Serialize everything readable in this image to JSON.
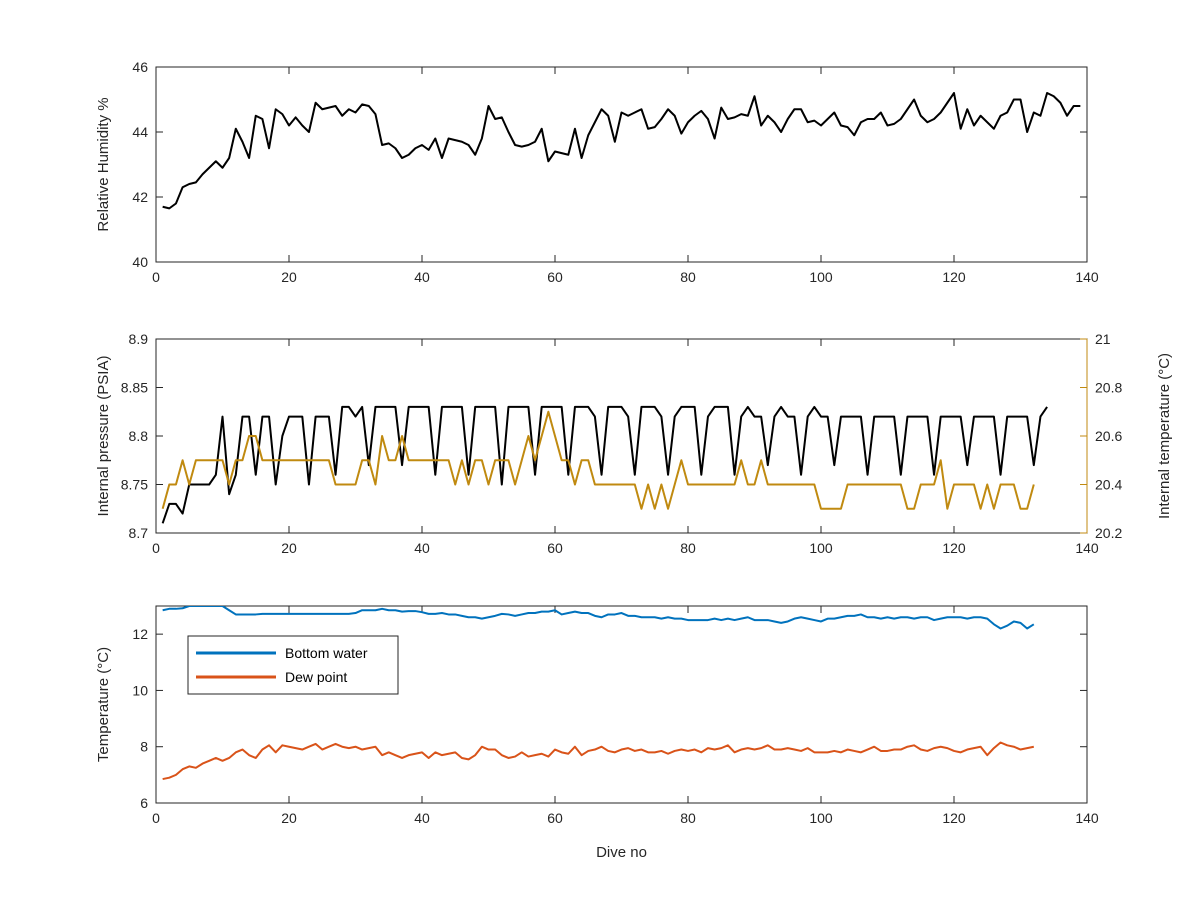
{
  "chart_data": [
    {
      "type": "line",
      "xlim": [
        0,
        140
      ],
      "x_ticks": [
        "0",
        "20",
        "40",
        "60",
        "80",
        "100",
        "120",
        "140"
      ],
      "ylim": [
        40,
        46
      ],
      "y_ticks": [
        "40",
        "42",
        "44",
        "46"
      ],
      "xlabel": "",
      "ylabel": "Relative Humidity %",
      "grid": false,
      "series": [
        {
          "color": "#000000",
          "x_start": 1,
          "x_step": 1,
          "values": [
            41.7,
            41.65,
            41.8,
            42.3,
            42.4,
            42.45,
            42.7,
            42.9,
            43.1,
            42.9,
            43.2,
            44.1,
            43.7,
            43.2,
            44.5,
            44.4,
            43.5,
            44.7,
            44.55,
            44.2,
            44.45,
            44.2,
            44.0,
            44.9,
            44.7,
            44.75,
            44.8,
            44.5,
            44.7,
            44.6,
            44.85,
            44.8,
            44.55,
            43.6,
            43.65,
            43.5,
            43.2,
            43.3,
            43.5,
            43.6,
            43.45,
            43.8,
            43.2,
            43.8,
            43.75,
            43.7,
            43.6,
            43.3,
            43.8,
            44.8,
            44.4,
            44.45,
            44.0,
            43.6,
            43.55,
            43.6,
            43.7,
            44.1,
            43.1,
            43.4,
            43.35,
            43.3,
            44.1,
            43.2,
            43.9,
            44.3,
            44.7,
            44.5,
            43.7,
            44.6,
            44.5,
            44.6,
            44.7,
            44.1,
            44.15,
            44.4,
            44.7,
            44.5,
            43.95,
            44.3,
            44.5,
            44.65,
            44.4,
            43.8,
            44.75,
            44.4,
            44.45,
            44.55,
            44.5,
            45.1,
            44.2,
            44.5,
            44.3,
            44.0,
            44.4,
            44.7,
            44.7,
            44.3,
            44.35,
            44.2,
            44.4,
            44.6,
            44.2,
            44.15,
            43.9,
            44.3,
            44.4,
            44.4,
            44.6,
            44.2,
            44.25,
            44.4,
            44.7,
            45.0,
            44.5,
            44.3,
            44.4,
            44.6,
            44.9,
            45.2,
            44.1,
            44.7,
            44.2,
            44.5,
            44.3,
            44.1,
            44.5,
            44.6,
            45.0,
            45.0,
            44.0,
            44.6,
            44.5,
            45.2,
            45.1,
            44.9,
            44.5,
            44.8,
            44.8
          ]
        }
      ]
    },
    {
      "type": "line",
      "xlim": [
        0,
        140
      ],
      "x_ticks": [
        "0",
        "20",
        "40",
        "60",
        "80",
        "100",
        "120",
        "140"
      ],
      "ylim": [
        8.7,
        8.9
      ],
      "y_ticks": [
        "8.7",
        "8.75",
        "8.8",
        "8.85",
        "8.9"
      ],
      "y2lim": [
        20.2,
        21
      ],
      "y2_ticks": [
        "20.2",
        "20.4",
        "20.6",
        "20.8",
        "21"
      ],
      "xlabel": "",
      "ylabel": "Internal pressure (PSIA)",
      "y2label": "Internal temperature (°C)",
      "y2color": "#C08A10",
      "grid": false,
      "series": [
        {
          "axis": "left",
          "color": "#000000",
          "x_start": 1,
          "x_step": 1,
          "values": [
            8.71,
            8.73,
            8.73,
            8.72,
            8.75,
            8.75,
            8.75,
            8.75,
            8.76,
            8.82,
            8.74,
            8.76,
            8.82,
            8.82,
            8.76,
            8.82,
            8.82,
            8.75,
            8.8,
            8.82,
            8.82,
            8.82,
            8.75,
            8.82,
            8.82,
            8.82,
            8.76,
            8.83,
            8.83,
            8.82,
            8.83,
            8.77,
            8.83,
            8.83,
            8.83,
            8.83,
            8.77,
            8.83,
            8.83,
            8.83,
            8.83,
            8.76,
            8.83,
            8.83,
            8.83,
            8.83,
            8.76,
            8.83,
            8.83,
            8.83,
            8.83,
            8.75,
            8.83,
            8.83,
            8.83,
            8.83,
            8.76,
            8.83,
            8.83,
            8.83,
            8.83,
            8.76,
            8.83,
            8.83,
            8.83,
            8.82,
            8.76,
            8.83,
            8.83,
            8.83,
            8.82,
            8.76,
            8.83,
            8.83,
            8.83,
            8.82,
            8.76,
            8.82,
            8.83,
            8.83,
            8.83,
            8.76,
            8.82,
            8.83,
            8.83,
            8.83,
            8.76,
            8.82,
            8.83,
            8.82,
            8.82,
            8.77,
            8.82,
            8.83,
            8.82,
            8.82,
            8.76,
            8.82,
            8.83,
            8.82,
            8.82,
            8.77,
            8.82,
            8.82,
            8.82,
            8.82,
            8.76,
            8.82,
            8.82,
            8.82,
            8.82,
            8.76,
            8.82,
            8.82,
            8.82,
            8.82,
            8.76,
            8.82,
            8.82,
            8.82,
            8.82,
            8.77,
            8.82,
            8.82,
            8.82,
            8.82,
            8.76,
            8.82,
            8.82,
            8.82,
            8.82,
            8.77,
            8.82,
            8.83
          ]
        },
        {
          "axis": "right",
          "color": "#C08A10",
          "x_start": 1,
          "x_step": 1,
          "values": [
            20.3,
            20.4,
            20.4,
            20.5,
            20.4,
            20.5,
            20.5,
            20.5,
            20.5,
            20.5,
            20.4,
            20.5,
            20.5,
            20.6,
            20.6,
            20.5,
            20.5,
            20.5,
            20.5,
            20.5,
            20.5,
            20.5,
            20.5,
            20.5,
            20.5,
            20.5,
            20.4,
            20.4,
            20.4,
            20.4,
            20.5,
            20.5,
            20.4,
            20.6,
            20.5,
            20.5,
            20.6,
            20.5,
            20.5,
            20.5,
            20.5,
            20.5,
            20.5,
            20.5,
            20.4,
            20.5,
            20.4,
            20.5,
            20.5,
            20.4,
            20.5,
            20.5,
            20.5,
            20.4,
            20.5,
            20.6,
            20.5,
            20.6,
            20.7,
            20.6,
            20.5,
            20.5,
            20.4,
            20.5,
            20.5,
            20.4,
            20.4,
            20.4,
            20.4,
            20.4,
            20.4,
            20.4,
            20.3,
            20.4,
            20.3,
            20.4,
            20.3,
            20.4,
            20.5,
            20.4,
            20.4,
            20.4,
            20.4,
            20.4,
            20.4,
            20.4,
            20.4,
            20.5,
            20.4,
            20.4,
            20.5,
            20.4,
            20.4,
            20.4,
            20.4,
            20.4,
            20.4,
            20.4,
            20.4,
            20.3,
            20.3,
            20.3,
            20.3,
            20.4,
            20.4,
            20.4,
            20.4,
            20.4,
            20.4,
            20.4,
            20.4,
            20.4,
            20.3,
            20.3,
            20.4,
            20.4,
            20.4,
            20.5,
            20.3,
            20.4,
            20.4,
            20.4,
            20.4,
            20.3,
            20.4,
            20.3,
            20.4,
            20.4,
            20.4,
            20.3,
            20.3,
            20.4
          ]
        }
      ]
    },
    {
      "type": "line",
      "xlim": [
        0,
        140
      ],
      "x_ticks": [
        "0",
        "20",
        "40",
        "60",
        "80",
        "100",
        "120",
        "140"
      ],
      "ylim": [
        6,
        13
      ],
      "y_ticks": [
        "6",
        "8",
        "10",
        "12"
      ],
      "xlabel": "Dive no",
      "ylabel": "Temperature (°C)",
      "grid": false,
      "legend": {
        "position": "top-left",
        "entries": [
          "Bottom water",
          "Dew point"
        ]
      },
      "series": [
        {
          "name": "Bottom water",
          "color": "#0072BD",
          "x_start": 1,
          "x_step": 1,
          "values": [
            12.85,
            12.9,
            12.9,
            12.92,
            13.0,
            13.0,
            13.0,
            13.0,
            13.0,
            13.0,
            12.85,
            12.7,
            12.7,
            12.7,
            12.7,
            12.72,
            12.72,
            12.72,
            12.72,
            12.72,
            12.72,
            12.72,
            12.72,
            12.72,
            12.72,
            12.72,
            12.72,
            12.72,
            12.72,
            12.75,
            12.85,
            12.85,
            12.85,
            12.9,
            12.85,
            12.85,
            12.8,
            12.82,
            12.82,
            12.78,
            12.72,
            12.72,
            12.75,
            12.7,
            12.7,
            12.65,
            12.6,
            12.6,
            12.55,
            12.6,
            12.65,
            12.72,
            12.7,
            12.65,
            12.7,
            12.75,
            12.75,
            12.8,
            12.8,
            12.85,
            12.7,
            12.75,
            12.8,
            12.75,
            12.75,
            12.65,
            12.6,
            12.7,
            12.7,
            12.75,
            12.65,
            12.65,
            12.6,
            12.6,
            12.6,
            12.55,
            12.6,
            12.55,
            12.55,
            12.5,
            12.5,
            12.5,
            12.5,
            12.55,
            12.5,
            12.55,
            12.5,
            12.55,
            12.6,
            12.5,
            12.5,
            12.5,
            12.45,
            12.4,
            12.45,
            12.55,
            12.6,
            12.55,
            12.5,
            12.45,
            12.55,
            12.55,
            12.6,
            12.65,
            12.65,
            12.7,
            12.6,
            12.6,
            12.55,
            12.6,
            12.55,
            12.6,
            12.6,
            12.55,
            12.6,
            12.6,
            12.5,
            12.55,
            12.6,
            12.6,
            12.6,
            12.55,
            12.6,
            12.6,
            12.55,
            12.35,
            12.2,
            12.3,
            12.45,
            12.4,
            12.2,
            12.35
          ]
        },
        {
          "name": "Dew point",
          "color": "#D95319",
          "x_start": 1,
          "x_step": 1,
          "values": [
            6.85,
            6.9,
            7.0,
            7.2,
            7.3,
            7.25,
            7.4,
            7.5,
            7.6,
            7.5,
            7.6,
            7.8,
            7.9,
            7.7,
            7.6,
            7.9,
            8.05,
            7.8,
            8.05,
            8.0,
            7.95,
            7.9,
            8.0,
            8.1,
            7.9,
            8.0,
            8.1,
            8.0,
            7.95,
            8.0,
            7.9,
            7.95,
            8.0,
            7.7,
            7.8,
            7.7,
            7.6,
            7.7,
            7.75,
            7.8,
            7.6,
            7.8,
            7.7,
            7.75,
            7.8,
            7.6,
            7.55,
            7.7,
            8.0,
            7.9,
            7.9,
            7.7,
            7.6,
            7.65,
            7.8,
            7.65,
            7.7,
            7.75,
            7.65,
            7.9,
            7.8,
            7.75,
            8.0,
            7.7,
            7.85,
            7.9,
            8.0,
            7.85,
            7.8,
            7.9,
            7.95,
            7.85,
            7.9,
            7.8,
            7.8,
            7.85,
            7.75,
            7.85,
            7.9,
            7.85,
            7.9,
            7.8,
            7.95,
            7.9,
            7.95,
            8.05,
            7.8,
            7.9,
            7.95,
            7.9,
            7.95,
            8.05,
            7.9,
            7.9,
            7.95,
            7.9,
            7.85,
            7.95,
            7.8,
            7.8,
            7.8,
            7.85,
            7.8,
            7.9,
            7.85,
            7.8,
            7.9,
            8.0,
            7.85,
            7.85,
            7.9,
            7.9,
            8.0,
            8.05,
            7.9,
            7.85,
            7.95,
            8.0,
            7.95,
            7.85,
            7.8,
            7.9,
            7.95,
            8.0,
            7.7,
            7.95,
            8.15,
            8.05,
            8.0,
            7.9,
            7.95,
            8.0
          ]
        }
      ]
    }
  ]
}
